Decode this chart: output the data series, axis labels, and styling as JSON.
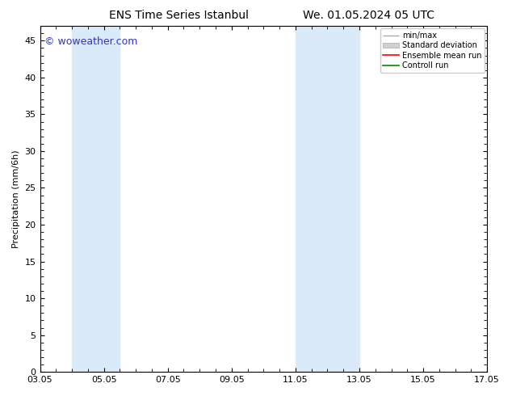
{
  "title_left": "ENS Time Series Istanbul",
  "title_right": "We. 01.05.2024 05 UTC",
  "ylabel": "Precipitation (mm/6h)",
  "watermark": "© woweather.com",
  "watermark_color": "#3333cc",
  "ylim": [
    0,
    47
  ],
  "yticks": [
    0,
    5,
    10,
    15,
    20,
    25,
    30,
    35,
    40,
    45
  ],
  "xtick_labels": [
    "03.05",
    "05.05",
    "07.05",
    "09.05",
    "11.05",
    "13.05",
    "15.05",
    "17.05"
  ],
  "background_color": "#ffffff",
  "plot_bg_color": "#ffffff",
  "shaded_bands": [
    {
      "x_start": 4.0,
      "x_end": 5.5,
      "color": "#daeaf8"
    },
    {
      "x_start": 11.0,
      "x_end": 13.0,
      "color": "#daeaf8"
    }
  ],
  "legend_items": [
    {
      "label": "min/max",
      "color": "#aaaaaa",
      "style": "line_with_caps"
    },
    {
      "label": "Standard deviation",
      "color": "#cccccc",
      "style": "filled_rect"
    },
    {
      "label": "Ensemble mean run",
      "color": "#ff0000",
      "style": "line"
    },
    {
      "label": "Controll run",
      "color": "#008800",
      "style": "line"
    }
  ],
  "title_fontsize": 10,
  "axis_fontsize": 8,
  "tick_fontsize": 8,
  "watermark_fontsize": 9,
  "x_numeric": [
    3.0,
    5.0,
    7.0,
    9.0,
    11.0,
    13.0,
    15.0,
    17.0
  ],
  "xlim": [
    3.0,
    17.0
  ]
}
